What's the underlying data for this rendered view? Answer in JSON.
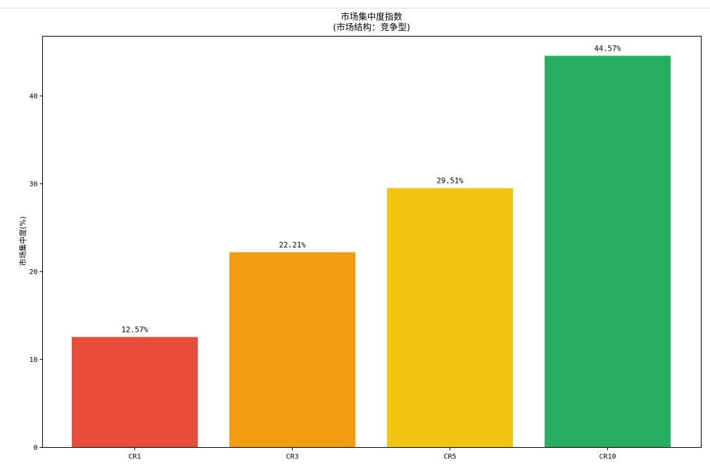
{
  "chart_data": {
    "type": "bar",
    "title": "市场集中度指数",
    "subtitle": "(市场结构：竞争型)",
    "xlabel": "",
    "ylabel": "市场集中度(%)",
    "categories": [
      "CR1",
      "CR3",
      "CR5",
      "CR10"
    ],
    "values": [
      12.57,
      22.21,
      29.51,
      44.57
    ],
    "value_labels": [
      "12.57%",
      "22.21%",
      "29.51%",
      "44.57%"
    ],
    "colors": [
      "#e74c3c",
      "#f39c12",
      "#f1c40f",
      "#27ae60"
    ],
    "yticks": [
      0,
      10,
      20,
      30,
      40
    ],
    "ytick_labels": [
      "0",
      "10",
      "20",
      "30",
      "40"
    ],
    "ylim": [
      0,
      46.8
    ],
    "grid": false,
    "legend": "none"
  }
}
